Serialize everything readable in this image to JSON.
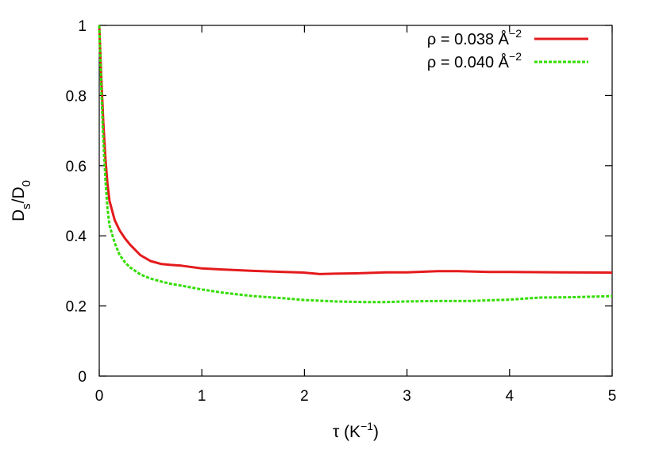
{
  "chart_data": {
    "type": "line",
    "title": "",
    "xlabel": {
      "base": "τ (K",
      "sup": "−1",
      "tail": ")"
    },
    "ylabel": {
      "a": "D",
      "a_sub": "s",
      "mid": "/D",
      "b_sub": "0"
    },
    "xlim": [
      0,
      5
    ],
    "ylim": [
      0,
      1
    ],
    "xticks": [
      0,
      1,
      2,
      3,
      4,
      5
    ],
    "xtick_labels": [
      "0",
      "1",
      "2",
      "3",
      "4",
      "5"
    ],
    "yticks": [
      0,
      0.2,
      0.4,
      0.6,
      0.8,
      1
    ],
    "ytick_labels": [
      "0",
      "0.2",
      "0.4",
      "0.6",
      "0.8",
      "1"
    ],
    "grid": false,
    "legend_position": "top-right",
    "series": [
      {
        "name": "ρ = 0.038 Å",
        "name_sup": "−2",
        "color": "#e41a1c",
        "style": "solid",
        "x": [
          0,
          0.02,
          0.04,
          0.06,
          0.08,
          0.1,
          0.15,
          0.2,
          0.25,
          0.3,
          0.4,
          0.5,
          0.6,
          0.7,
          0.8,
          1.0,
          1.2,
          1.5,
          1.8,
          2.0,
          2.15,
          2.3,
          2.5,
          2.8,
          3.0,
          3.3,
          3.5,
          3.8,
          4.0,
          4.5,
          5.0
        ],
        "y": [
          1.0,
          0.85,
          0.72,
          0.62,
          0.55,
          0.5,
          0.445,
          0.415,
          0.393,
          0.375,
          0.345,
          0.328,
          0.32,
          0.317,
          0.315,
          0.307,
          0.304,
          0.3,
          0.297,
          0.295,
          0.291,
          0.292,
          0.293,
          0.296,
          0.296,
          0.299,
          0.299,
          0.297,
          0.297,
          0.296,
          0.295
        ]
      },
      {
        "name": "ρ = 0.040 Å",
        "name_sup": "−2",
        "color": "#33dd00",
        "style": "dashed",
        "x": [
          0,
          0.02,
          0.04,
          0.06,
          0.08,
          0.1,
          0.15,
          0.2,
          0.25,
          0.3,
          0.4,
          0.5,
          0.6,
          0.7,
          0.8,
          1.0,
          1.2,
          1.5,
          1.8,
          2.0,
          2.3,
          2.6,
          2.8,
          3.0,
          3.3,
          3.6,
          4.0,
          4.3,
          4.6,
          5.0
        ],
        "y": [
          1.0,
          0.82,
          0.67,
          0.56,
          0.48,
          0.43,
          0.38,
          0.345,
          0.325,
          0.31,
          0.29,
          0.278,
          0.27,
          0.263,
          0.258,
          0.247,
          0.238,
          0.228,
          0.222,
          0.217,
          0.213,
          0.211,
          0.211,
          0.213,
          0.214,
          0.214,
          0.218,
          0.224,
          0.225,
          0.228
        ]
      }
    ]
  }
}
